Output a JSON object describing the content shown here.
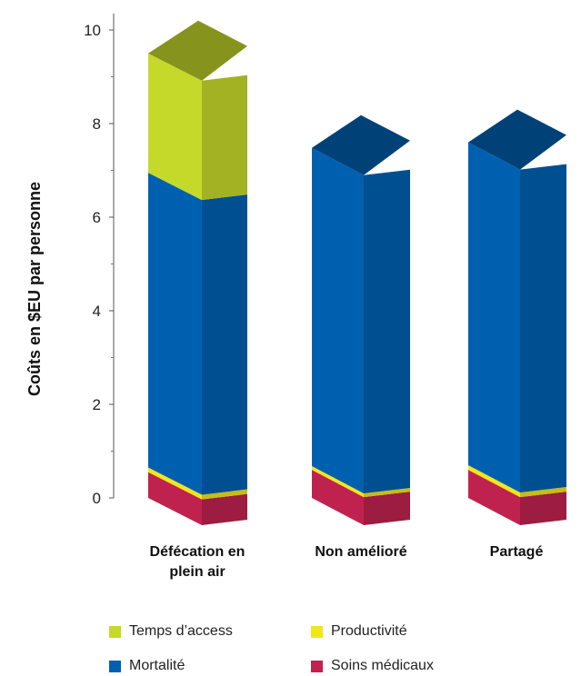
{
  "chart_data": {
    "type": "bar",
    "stacked": true,
    "categories": [
      "Défécation en plein air",
      "Non amélioré",
      "Partagé"
    ],
    "series": [
      {
        "name": "Soins médicaux",
        "color": "#c0224f",
        "values": [
          0.55,
          0.6,
          0.6
        ]
      },
      {
        "name": "Productivité",
        "color": "#f2e61a",
        "values": [
          0.1,
          0.08,
          0.1
        ]
      },
      {
        "name": "Mortalité",
        "color": "#0060b0",
        "values": [
          6.3,
          6.8,
          6.9
        ]
      },
      {
        "name": "Temps d'access",
        "color": "#c5d92a",
        "values": [
          2.55,
          0,
          0
        ]
      }
    ],
    "ylabel": "Coûts en $EU par personne",
    "ylim": [
      0,
      10
    ],
    "yticks": [
      0,
      2,
      4,
      6,
      8,
      10
    ],
    "grid": false,
    "legend_position": "bottom"
  },
  "legend_labels": [
    "Temps d’access",
    "Productivité",
    "Mortalité",
    "Soins médicaux"
  ],
  "category_lines": [
    [
      "Défécation en",
      "plein air"
    ],
    [
      "Non amélioré"
    ],
    [
      "Partagé"
    ]
  ],
  "legend_colors": [
    "#c5d92a",
    "#f2e61a",
    "#0060b0",
    "#c0224f"
  ]
}
